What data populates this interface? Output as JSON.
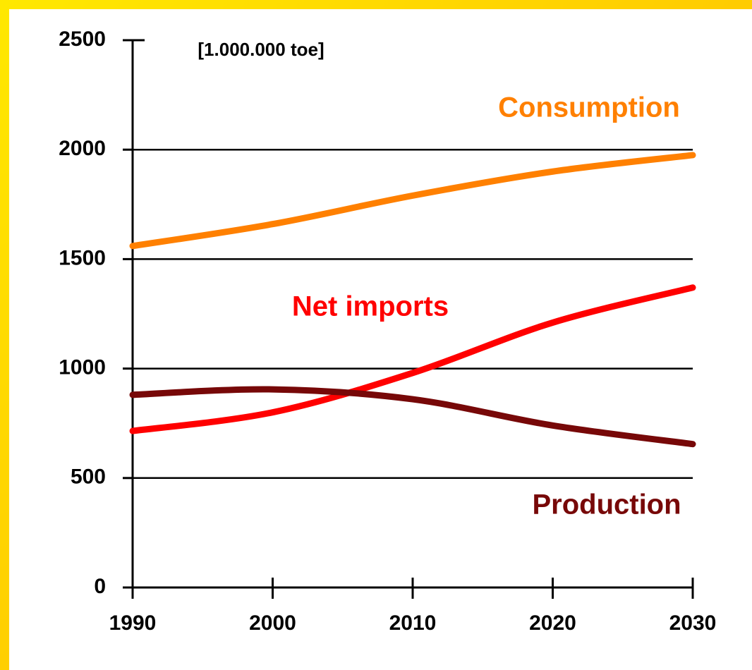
{
  "chart_data": {
    "type": "line",
    "ylabel": "[1.000.000 toe]",
    "x": [
      1990,
      2000,
      2010,
      2020,
      2030
    ],
    "series": [
      {
        "name": "Consumption",
        "color": "#ff8000",
        "values": [
          1560,
          1660,
          1790,
          1900,
          1975
        ]
      },
      {
        "name": "Net imports",
        "color": "#ff0000",
        "values": [
          715,
          800,
          980,
          1210,
          1370
        ]
      },
      {
        "name": "Production",
        "color": "#770808",
        "values": [
          880,
          905,
          860,
          740,
          655
        ]
      }
    ],
    "xlim": [
      1990,
      2030
    ],
    "xticks": [
      1990,
      2000,
      2010,
      2020,
      2030
    ],
    "ylim": [
      0,
      2500
    ],
    "yticks": [
      0,
      500,
      1000,
      1500,
      2000,
      2500
    ],
    "grid": true
  }
}
